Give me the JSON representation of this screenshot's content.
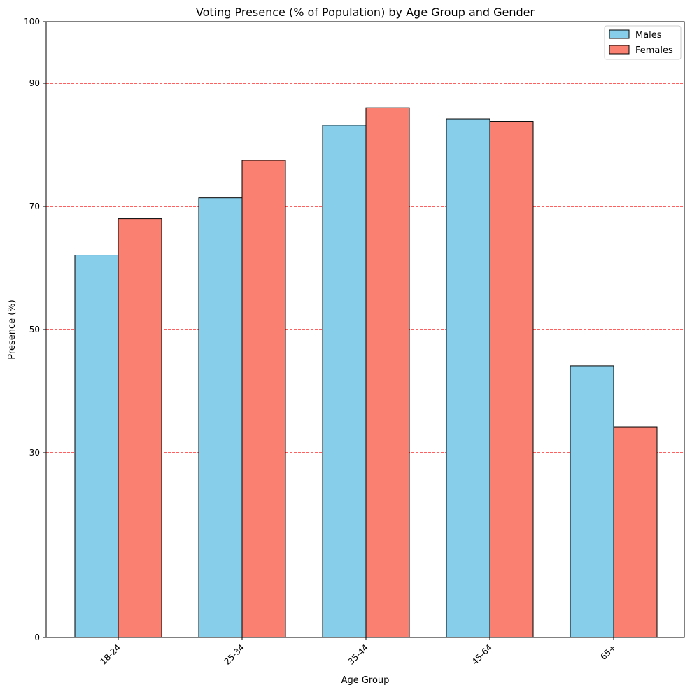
{
  "chart_data": {
    "type": "bar",
    "title": "Voting Presence (% of Population) by Age Group and Gender",
    "xlabel": "Age Group",
    "ylabel": "Presence (%)",
    "categories": [
      "18-24",
      "25-34",
      "35-44",
      "45-64",
      "65+"
    ],
    "series": [
      {
        "name": "Males",
        "color": "#87CEEB",
        "values": [
          62.1,
          71.4,
          83.2,
          84.2,
          44.1
        ]
      },
      {
        "name": "Females",
        "color": "#FA8072",
        "values": [
          68.0,
          77.5,
          86.0,
          83.8,
          34.2
        ]
      }
    ],
    "ylim": [
      0,
      100
    ],
    "yticks": [
      0,
      30,
      50,
      70,
      90,
      100
    ],
    "reference_lines": {
      "values": [
        30,
        50,
        70,
        90
      ],
      "color": "#FF0000",
      "style": "dashed"
    },
    "legend_position": "top-right",
    "bar_edge_color": "#000000",
    "grid": false
  }
}
